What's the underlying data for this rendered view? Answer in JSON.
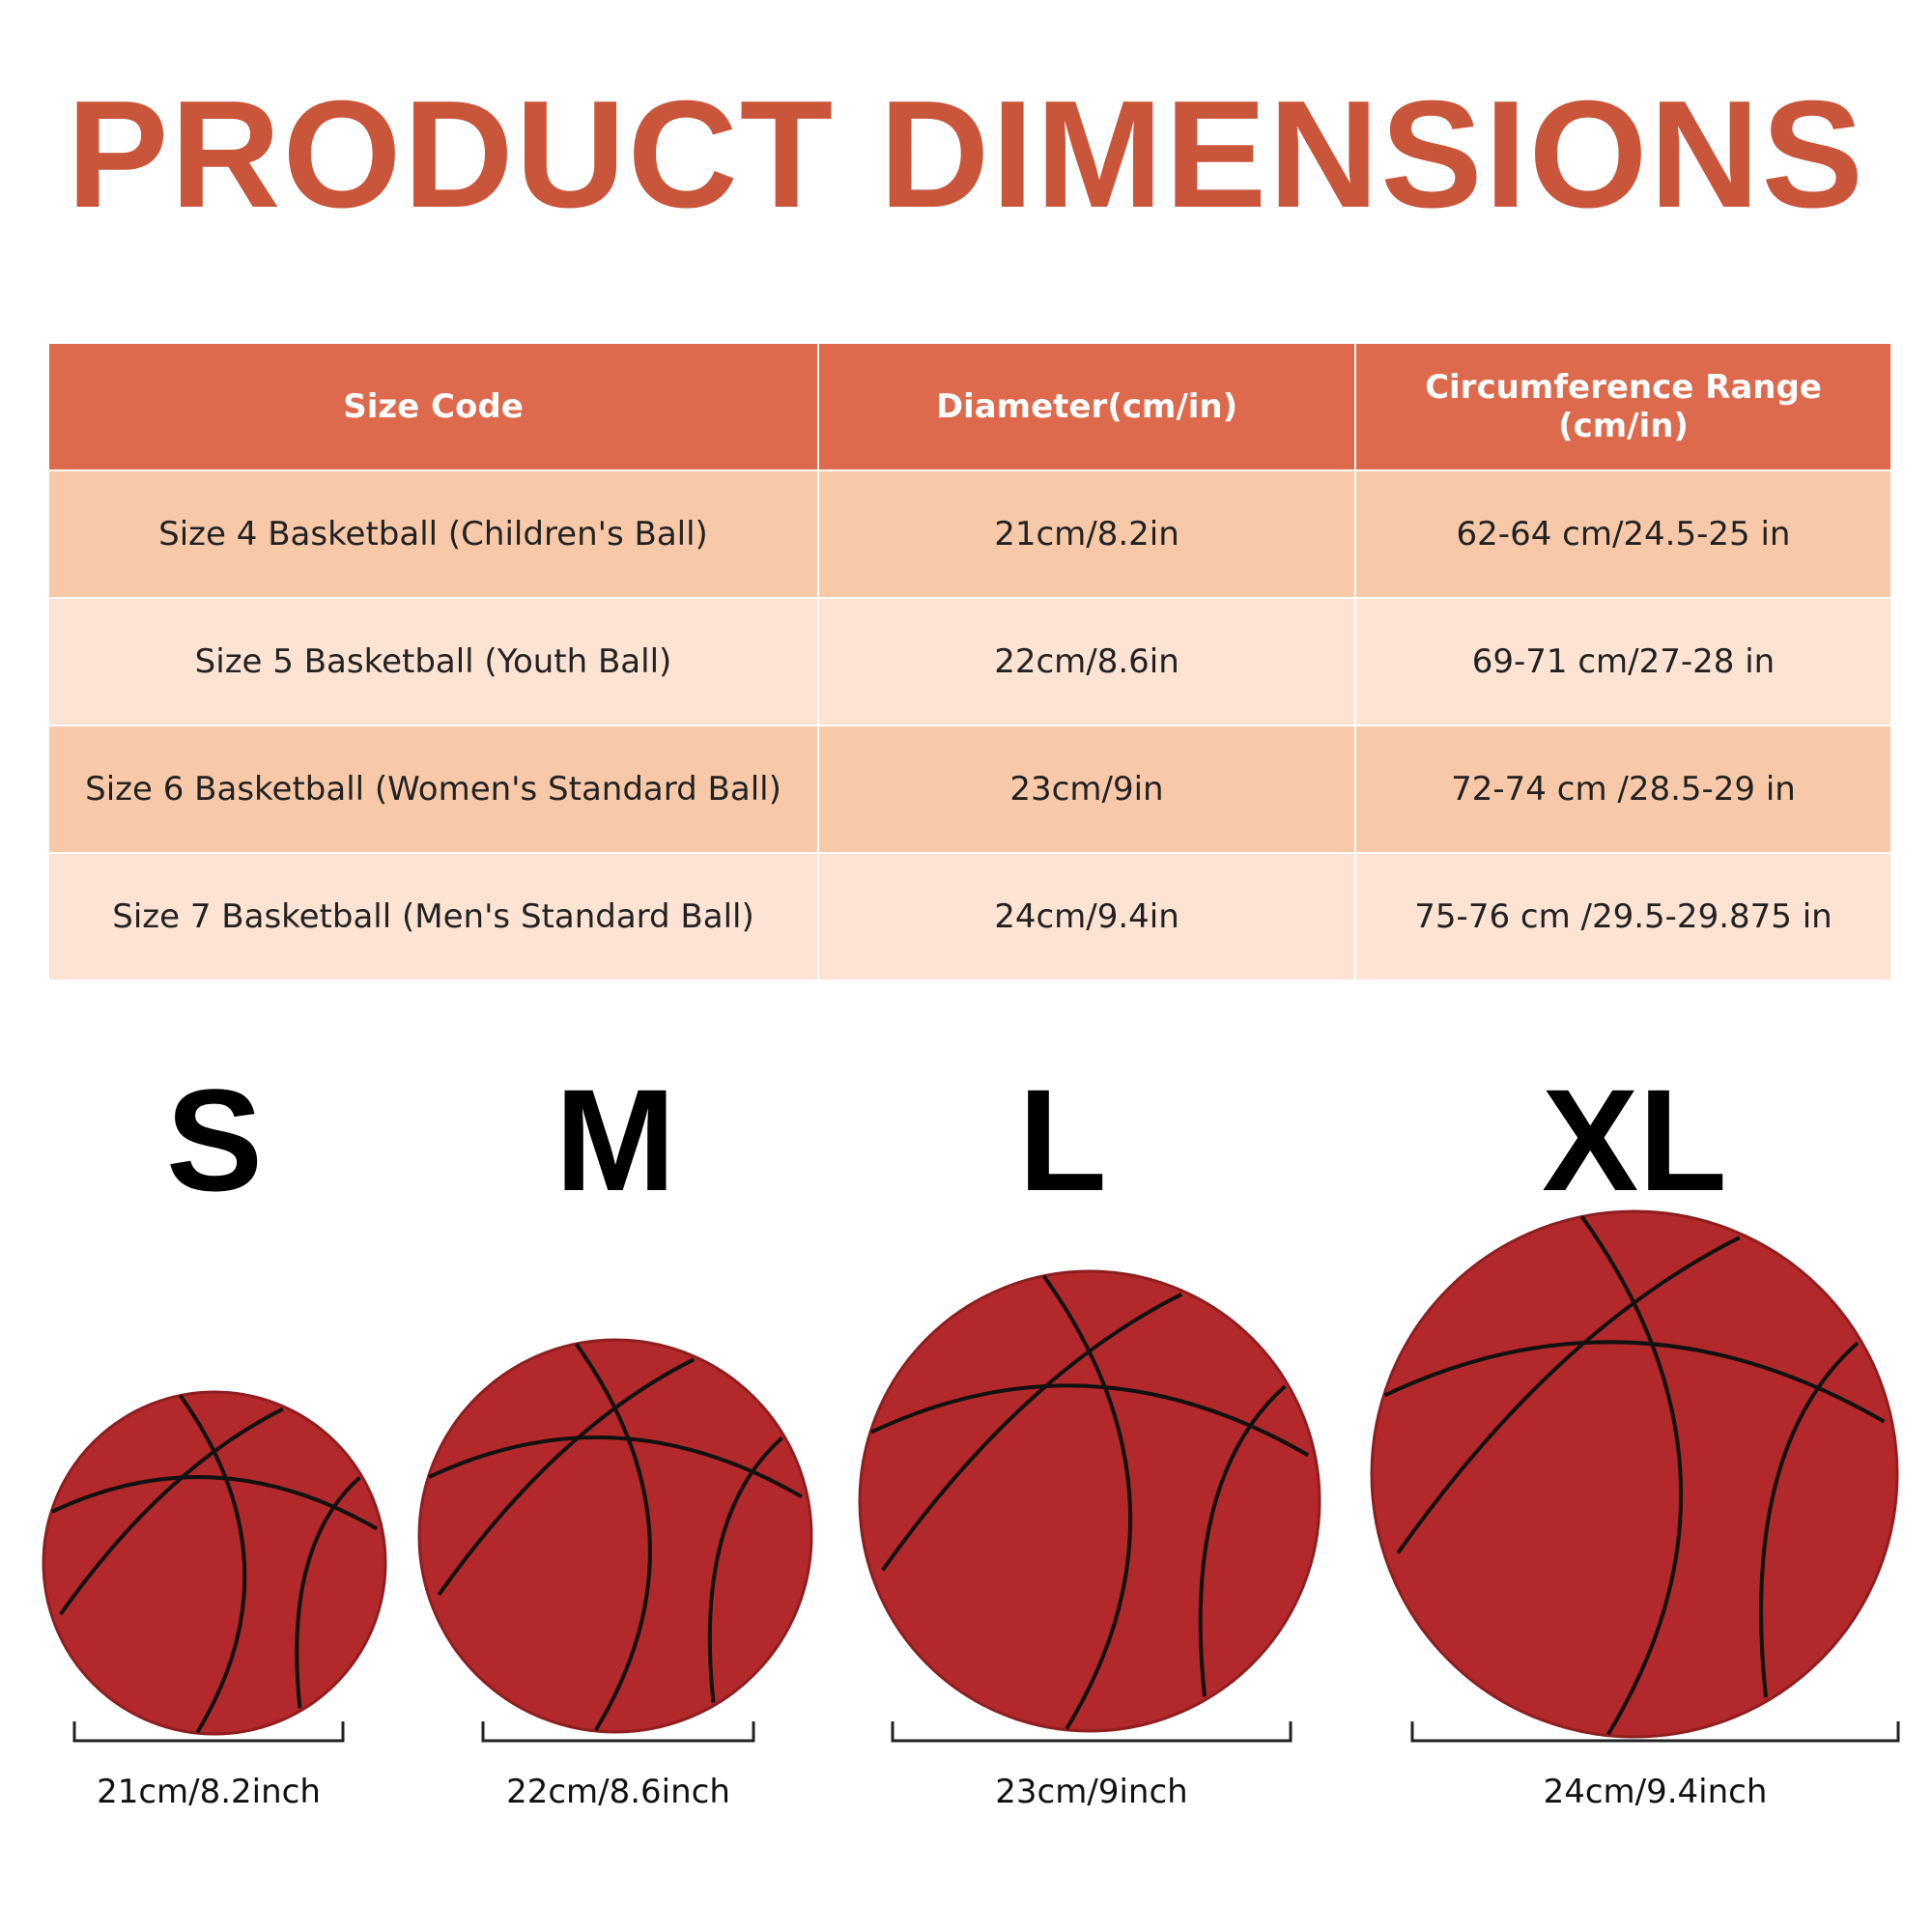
{
  "header": {
    "title": "PRODUCT DIMENSIONS"
  },
  "table": {
    "headers": [
      "Size Code",
      "Diameter(cm/in)",
      "Circumference Range (cm/in)"
    ],
    "rows": [
      [
        "Size 4 Basketball (Children's Ball)",
        "21cm/8.2in",
        "62-64 cm/24.5-25 in"
      ],
      [
        "Size 5 Basketball (Youth Ball)",
        "22cm/8.6in",
        "69-71 cm/27-28 in"
      ],
      [
        "Size 6 Basketball (Women's Standard Ball)",
        "23cm/9in",
        "72-74 cm /28.5-29 in"
      ],
      [
        "Size 7 Basketball (Men's Standard Ball)",
        "24cm/9.4in",
        "75-76 cm /29.5-29.875 in"
      ]
    ]
  },
  "sizes": [
    {
      "letter": "S",
      "label": "21cm/8.2inch"
    },
    {
      "letter": "M",
      "label": "22cm/8.6inch"
    },
    {
      "letter": "L",
      "label": "23cm/9inch"
    },
    {
      "letter": "XL",
      "label": "24cm/9.4inch"
    }
  ]
}
